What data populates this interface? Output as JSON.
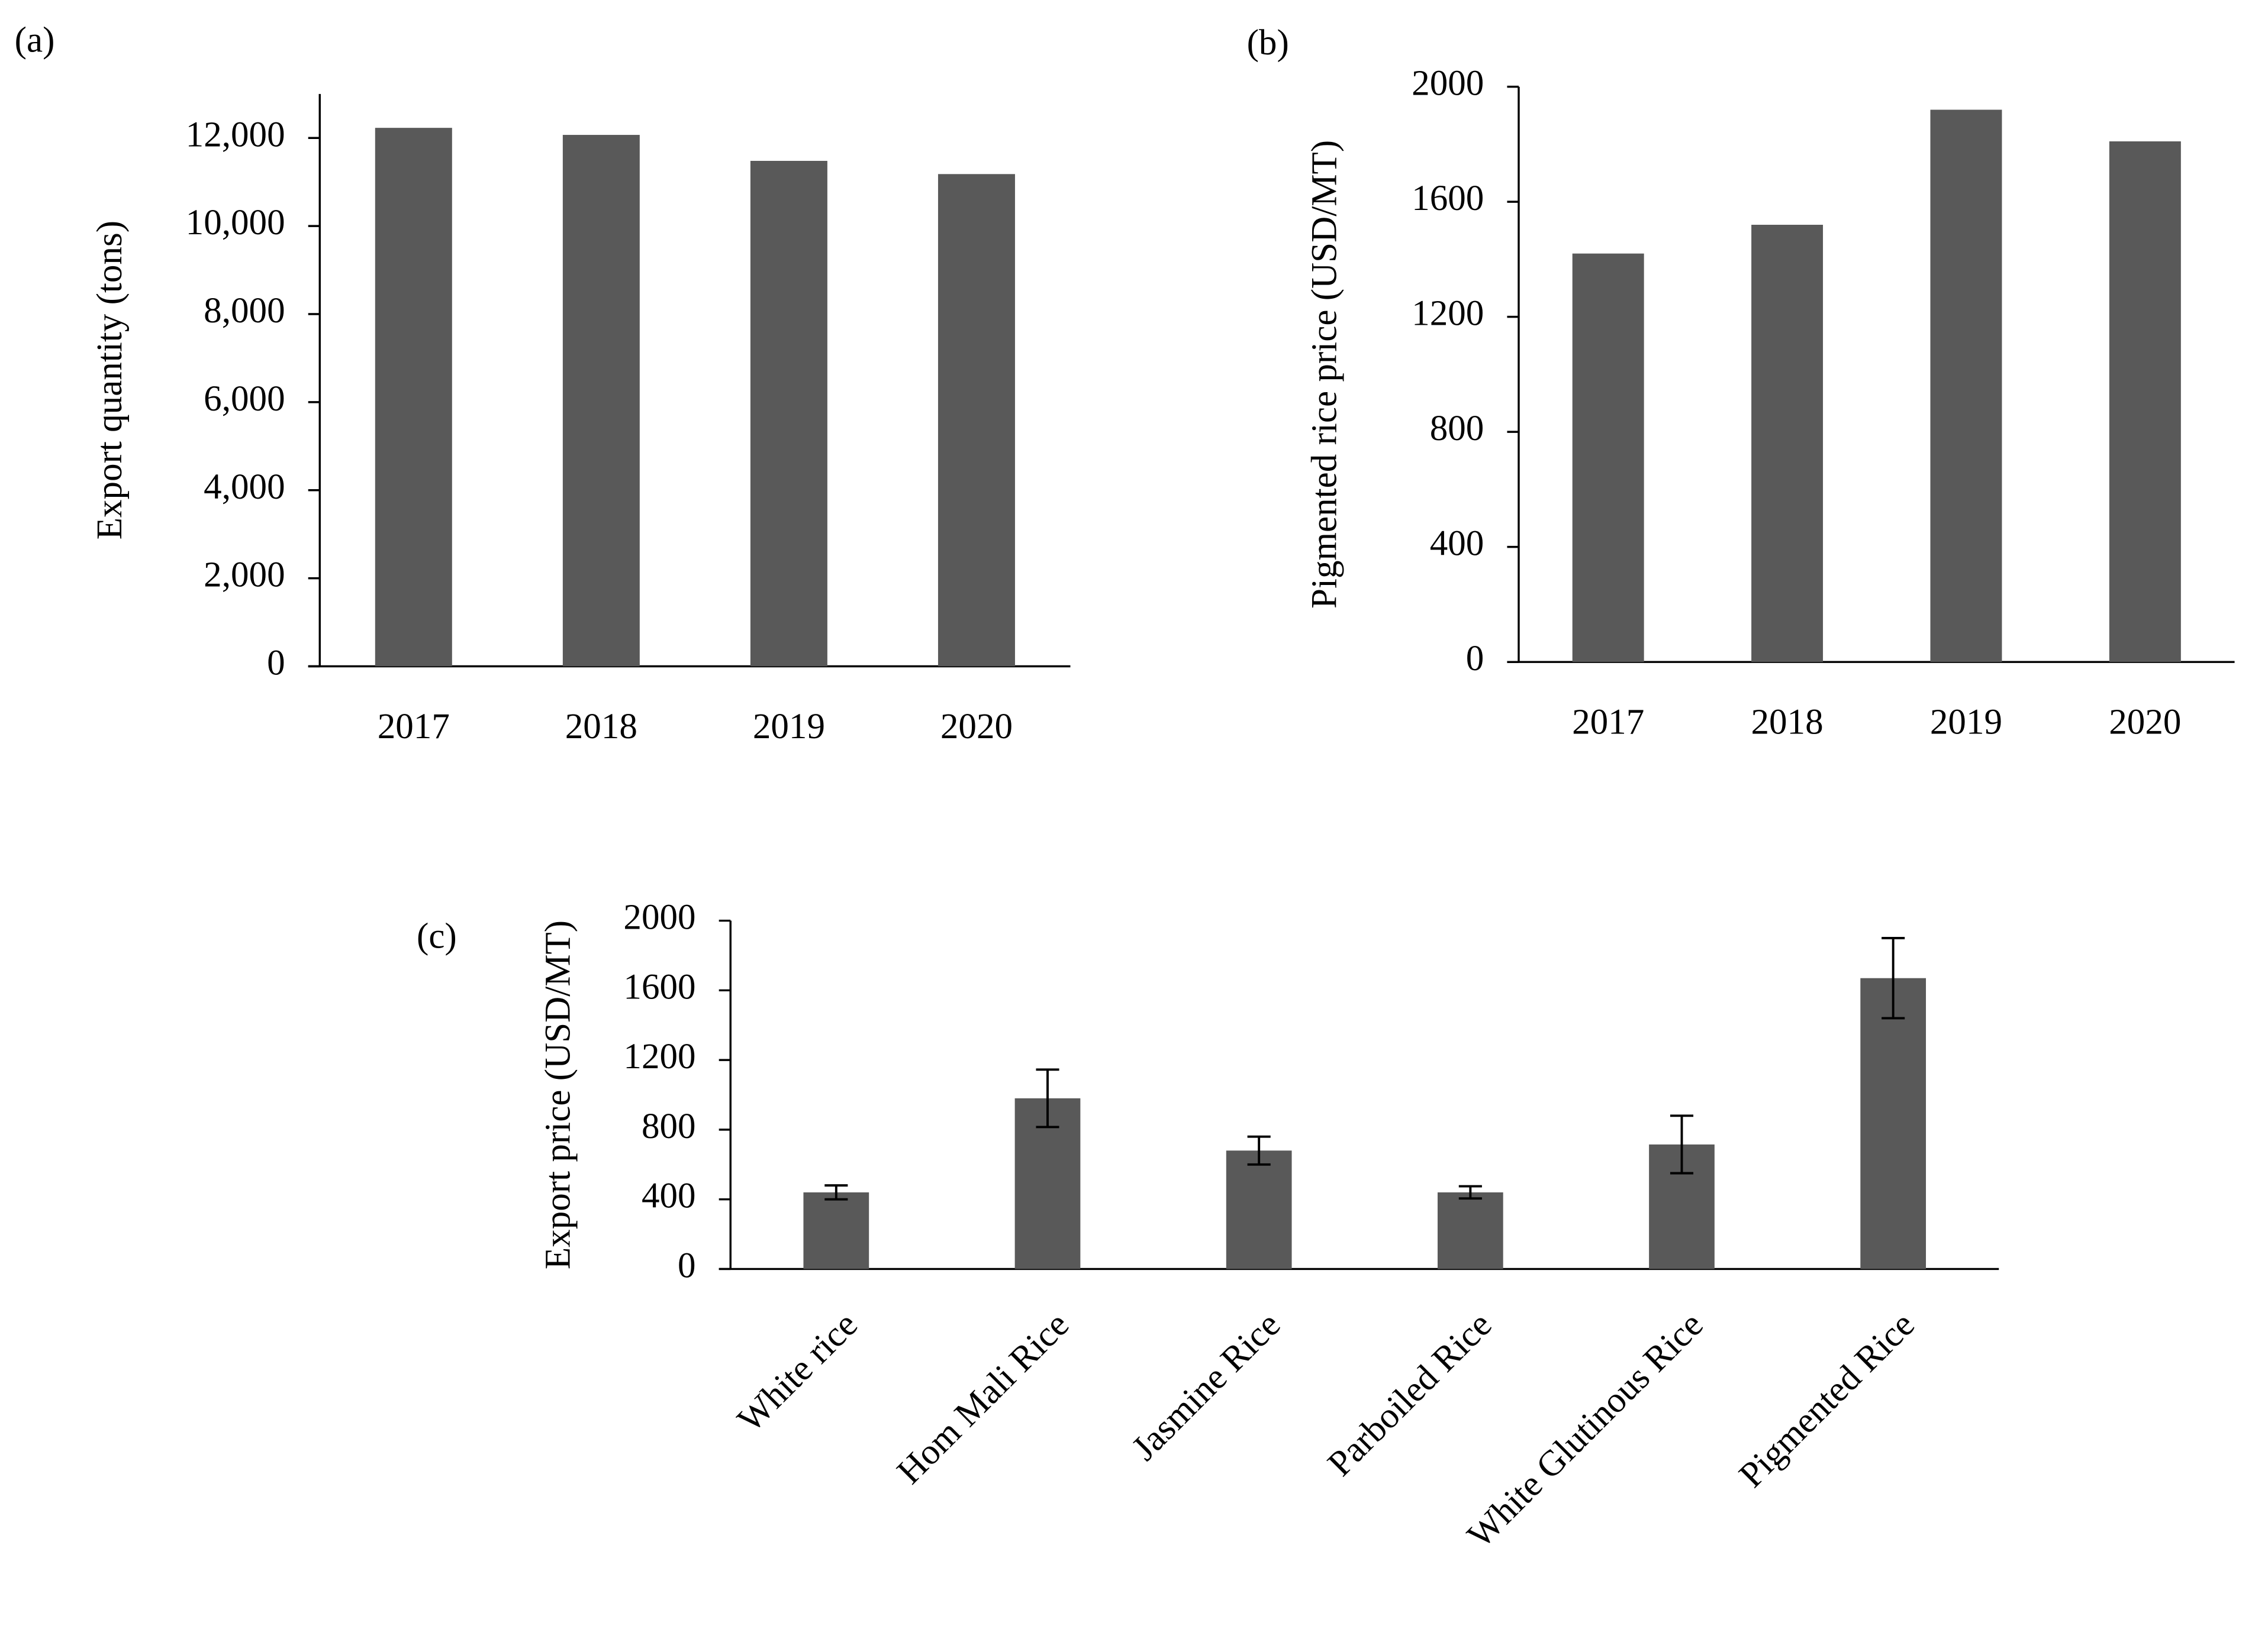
{
  "chart_data": [
    {
      "type": "bar",
      "panel_label": "(a)",
      "y_label": "Export quantity (tons)",
      "categories": [
        "2017",
        "2018",
        "2019",
        "2020"
      ],
      "values": [
        12230,
        12070,
        11480,
        11180
      ],
      "color": "#595959",
      "ylim": [
        0,
        13000
      ],
      "yticks": [
        0,
        {
          "value": 2000,
          "label": "2,000"
        },
        {
          "value": 4000,
          "label": "4,000"
        },
        {
          "value": 6000,
          "label": "6,000"
        },
        {
          "value": 8000,
          "label": "8,000"
        },
        {
          "value": 10000,
          "label": "10,000"
        },
        {
          "value": 12000,
          "label": "12,000"
        }
      ]
    },
    {
      "type": "bar",
      "panel_label": "(b)",
      "y_label": "Pigmented rice price (USD/MT)",
      "categories": [
        "2017",
        "2018",
        "2019",
        "2020"
      ],
      "values": [
        1420,
        1520,
        1920,
        1810
      ],
      "color": "#595959",
      "ylim": [
        0,
        2000
      ],
      "yticks": [
        0,
        400,
        800,
        1200,
        1600,
        2000
      ]
    },
    {
      "type": "bar",
      "panel_label": "(c)",
      "y_label": "Export price (USD/MT)",
      "categories": [
        "White rice",
        "Hom Mali Rice",
        "Jasmine Rice",
        "Parboiled Rice",
        "White Glutinous Rice",
        "Pigmented Rice"
      ],
      "values": [
        440,
        980,
        680,
        440,
        715,
        1670
      ],
      "errors": [
        40,
        165,
        80,
        35,
        165,
        230
      ],
      "color": "#595959",
      "ylim": [
        0,
        2000
      ],
      "yticks": [
        0,
        400,
        800,
        1200,
        1600,
        2000
      ]
    }
  ]
}
